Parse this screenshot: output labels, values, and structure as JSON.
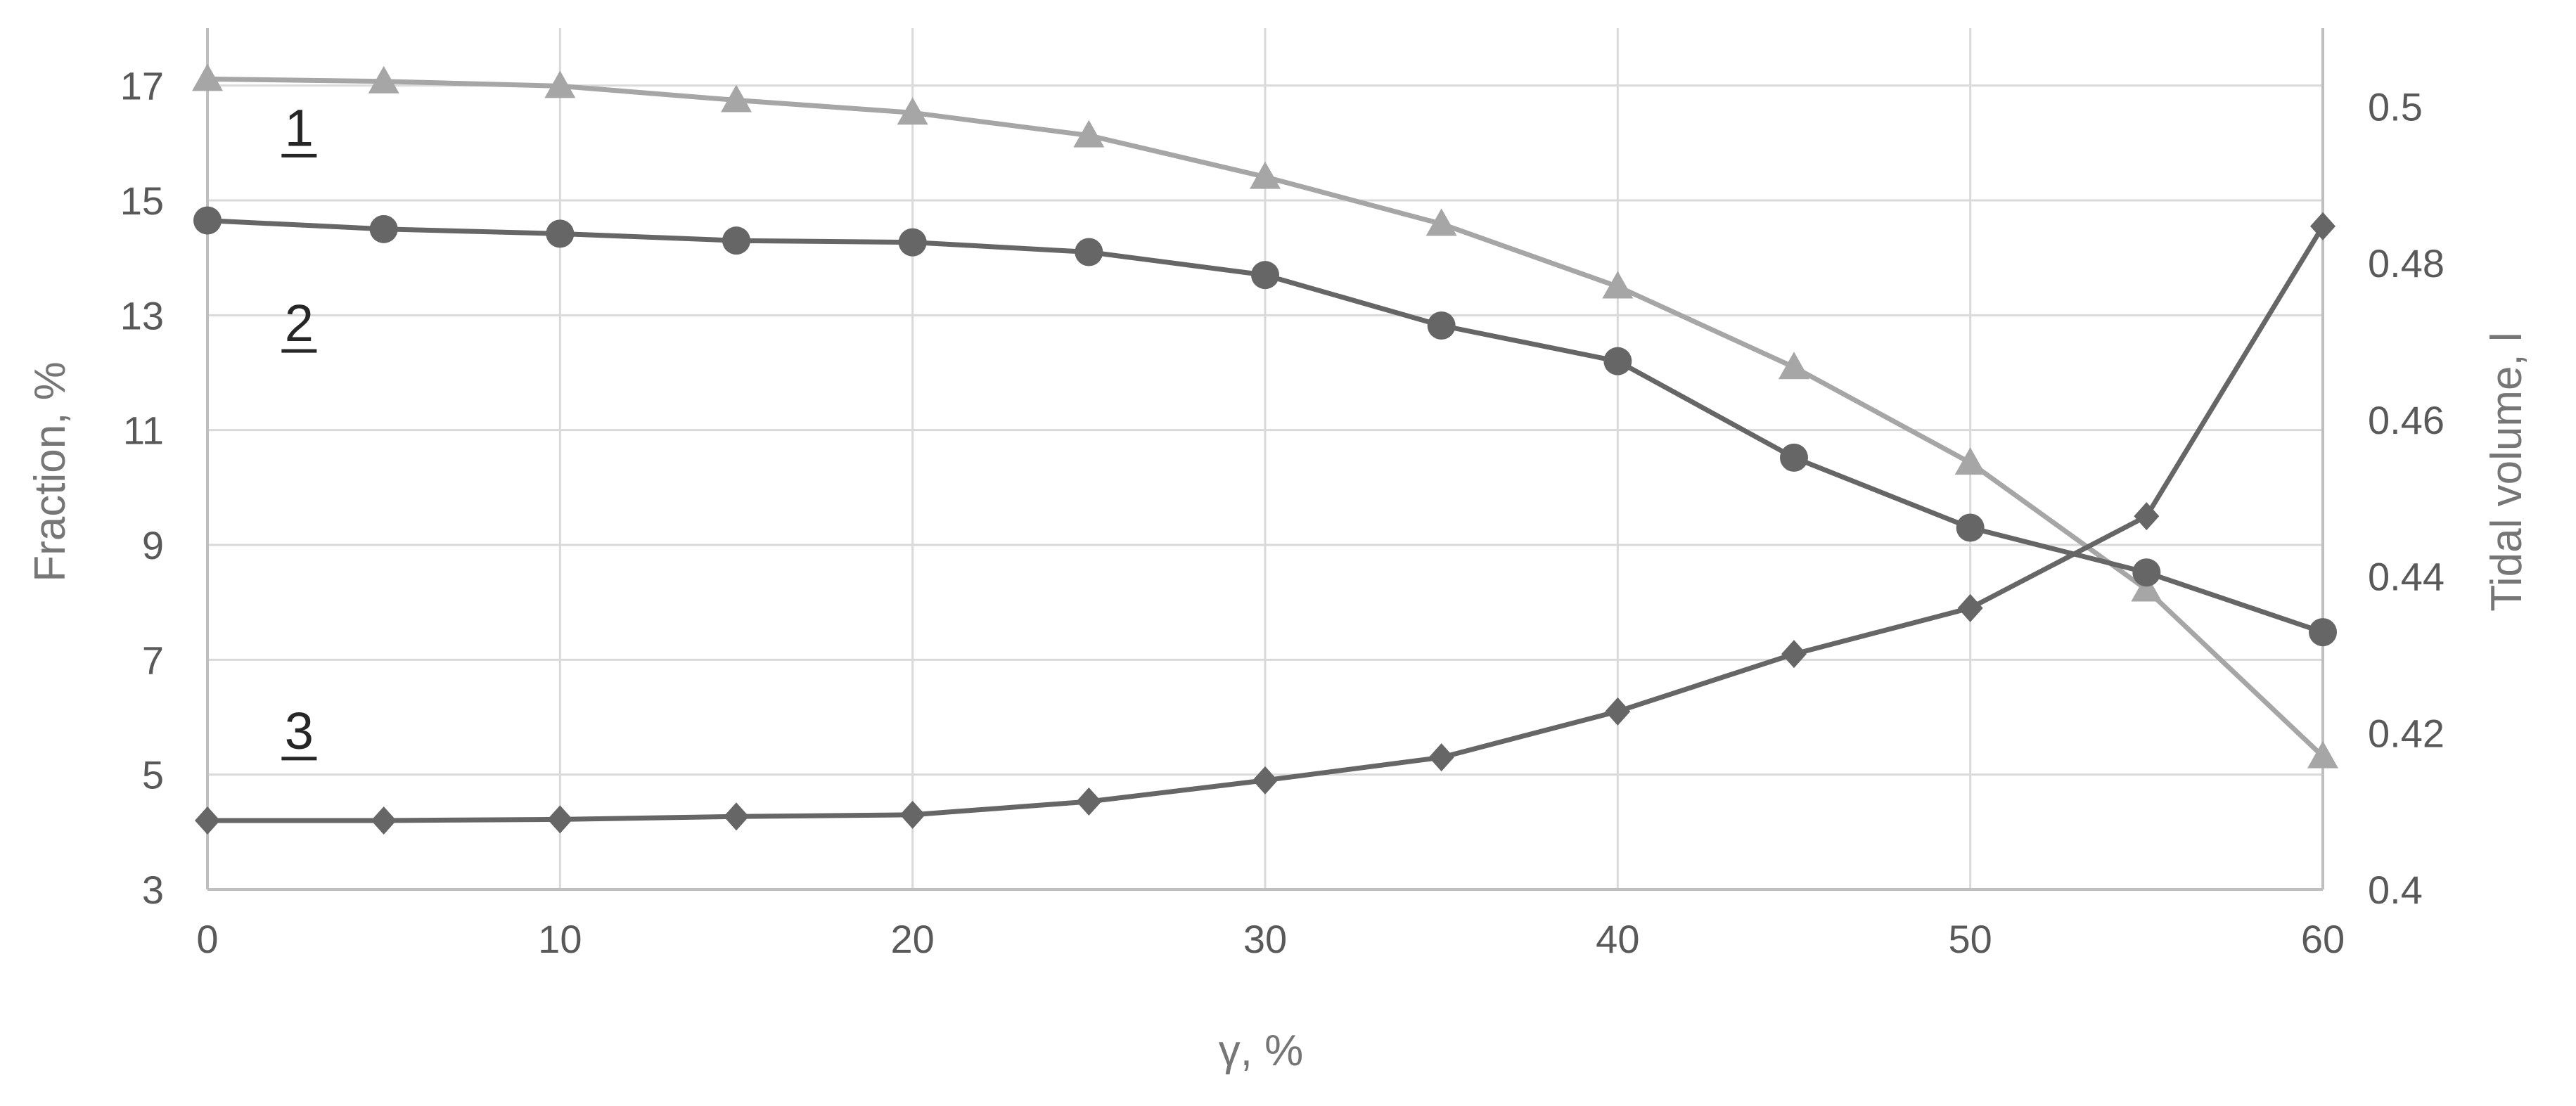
{
  "chart_data": {
    "type": "line",
    "xlabel": "γ, %",
    "ylabel_left": "Fraction, %",
    "ylabel_right": "Tidal volume, l",
    "xlim": [
      0,
      60
    ],
    "x_ticks": [
      0,
      10,
      20,
      30,
      40,
      50,
      60
    ],
    "ylim_left": [
      3,
      18
    ],
    "y_ticks_left": [
      3,
      5,
      7,
      9,
      11,
      13,
      15,
      17
    ],
    "ylim_right": [
      0.4,
      0.51
    ],
    "y_ticks_right": [
      0.4,
      0.42,
      0.44,
      0.46,
      0.48,
      0.5
    ],
    "grid": true,
    "x": [
      0,
      5,
      10,
      15,
      20,
      25,
      30,
      35,
      40,
      45,
      50,
      55,
      60
    ],
    "series": [
      {
        "label": "1",
        "axis": "right",
        "marker": "triangle",
        "color": "#a6a6a6",
        "values": [
          0.5035,
          0.5032,
          0.5026,
          0.5008,
          0.4992,
          0.4963,
          0.491,
          0.485,
          0.477,
          0.4667,
          0.4545,
          0.4383,
          0.417
        ]
      },
      {
        "label": "2",
        "axis": "left",
        "marker": "circle",
        "color": "#666666",
        "values": [
          14.65,
          14.5,
          14.42,
          14.3,
          14.27,
          14.1,
          13.7,
          12.82,
          12.2,
          10.52,
          9.3,
          8.52,
          7.48
        ]
      },
      {
        "label": "3",
        "axis": "left",
        "marker": "diamond",
        "color": "#666666",
        "values": [
          4.2,
          4.2,
          4.22,
          4.27,
          4.3,
          4.53,
          4.9,
          5.3,
          6.1,
          7.1,
          7.9,
          9.5,
          14.55
        ]
      }
    ]
  }
}
